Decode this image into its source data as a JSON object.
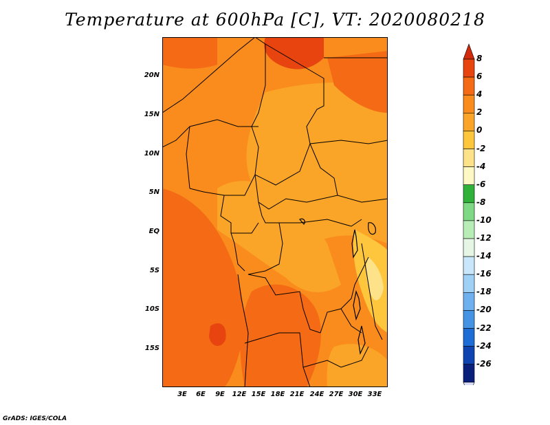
{
  "title": "Temperature at 600hPa [C], VT: 2020080218",
  "credit": "GrADS: IGES/COLA",
  "lat_labels": [
    "20N",
    "15N",
    "10N",
    "5N",
    "EQ",
    "5S",
    "10S",
    "15S"
  ],
  "lon_labels": [
    "3E",
    "6E",
    "9E",
    "12E",
    "15E",
    "18E",
    "21E",
    "24E",
    "27E",
    "30E",
    "33E"
  ],
  "colorbar": {
    "labels": [
      "8",
      "6",
      "4",
      "2",
      "0",
      "-2",
      "-4",
      "-6",
      "-8",
      "-10",
      "-12",
      "-14",
      "-16",
      "-18",
      "-20",
      "-22",
      "-24",
      "-26"
    ],
    "colors": [
      "#d22a0c",
      "#e84410",
      "#f56a14",
      "#f98c1c",
      "#fba528",
      "#fdc63c",
      "#fde28a",
      "#fef8c4",
      "#30b23a",
      "#7fd883",
      "#b9edb7",
      "#e5f7e4",
      "#c9e7fb",
      "#9fd0f6",
      "#6fb1ee",
      "#4593e3",
      "#1e6cd5",
      "#0f43b0",
      "#0a1f7a",
      "#d8dcf4"
    ]
  }
}
